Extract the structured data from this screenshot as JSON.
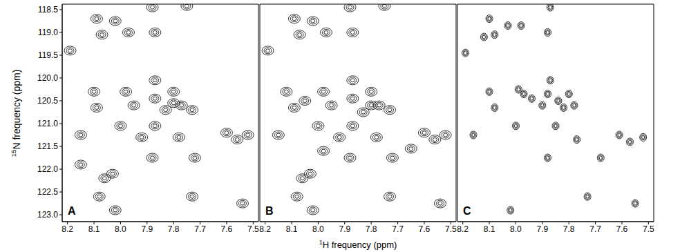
{
  "chart_data": [
    {
      "type": "scatter",
      "title": "A",
      "y_label": "15N frequency (ppm)",
      "color": "#000000",
      "grid": false,
      "x": [
        8.19,
        8.09,
        8.02,
        7.97,
        7.87,
        7.75,
        7.88,
        8.07,
        8.1,
        8.09,
        7.98,
        7.95,
        7.87,
        7.87,
        7.8,
        7.8,
        7.83,
        7.77,
        7.73,
        8.0,
        7.87,
        8.15,
        7.92,
        7.78,
        7.6,
        7.52,
        7.56,
        7.88,
        7.72,
        8.03,
        8.06,
        8.08,
        8.02,
        7.73,
        7.54,
        8.15
      ],
      "values": [
        119.4,
        118.7,
        118.75,
        119.0,
        119.0,
        118.42,
        118.45,
        119.05,
        120.3,
        120.65,
        120.3,
        120.6,
        120.05,
        120.45,
        120.3,
        120.55,
        120.7,
        120.6,
        120.7,
        121.05,
        121.05,
        121.25,
        121.3,
        121.3,
        121.2,
        121.25,
        121.35,
        121.75,
        121.75,
        122.1,
        122.2,
        122.6,
        122.9,
        122.6,
        122.75,
        121.9
      ],
      "xlim": [
        8.22,
        7.48
      ],
      "ylim": [
        123.15,
        118.38
      ],
      "xticks": [
        8.2,
        8.1,
        {
          "value": 8,
          "label": "8.0"
        },
        7.9,
        7.8,
        7.7,
        7.6,
        7.5
      ],
      "yticks": [
        118.5,
        {
          "value": 119,
          "label": "119.0"
        },
        119.5,
        {
          "value": 120,
          "label": "120.0"
        },
        120.5,
        {
          "value": 121,
          "label": "121.0"
        },
        121.5,
        {
          "value": 122,
          "label": "122.0"
        },
        122.5,
        {
          "value": 123,
          "label": "123.0"
        }
      ]
    },
    {
      "type": "scatter",
      "title": "B",
      "x_label": "1H frequency (ppm)",
      "color": "#000000",
      "grid": false,
      "tick_labels": "x",
      "x": [
        8.19,
        8.09,
        8.02,
        7.97,
        7.87,
        7.75,
        7.88,
        8.07,
        8.12,
        8.09,
        7.98,
        7.95,
        7.87,
        7.87,
        7.8,
        7.8,
        7.83,
        7.77,
        7.73,
        8.05,
        8.0,
        7.87,
        8.15,
        7.92,
        7.78,
        7.6,
        7.52,
        7.56,
        7.88,
        7.72,
        8.03,
        8.06,
        8.08,
        8.02,
        7.73,
        7.54,
        7.65,
        7.98
      ],
      "values": [
        119.4,
        118.7,
        118.75,
        119.0,
        119.0,
        118.42,
        118.45,
        119.05,
        120.3,
        120.65,
        120.3,
        120.6,
        120.05,
        120.45,
        120.3,
        120.6,
        120.75,
        120.6,
        120.7,
        120.5,
        121.05,
        121.05,
        121.25,
        121.3,
        121.3,
        121.2,
        121.25,
        121.35,
        121.75,
        121.75,
        122.1,
        122.2,
        122.6,
        122.9,
        122.6,
        122.75,
        121.55,
        121.6
      ],
      "xlim": [
        8.22,
        7.48
      ],
      "ylim": [
        123.15,
        118.38
      ],
      "xticks": [
        8.2,
        8.1,
        {
          "value": 8,
          "label": "8.0"
        },
        7.9,
        7.8,
        7.7,
        7.6,
        7.5
      ],
      "yticks": [
        118.5,
        {
          "value": 119,
          "label": "119.0"
        },
        119.5,
        {
          "value": 120,
          "label": "120.0"
        },
        120.5,
        {
          "value": 121,
          "label": "121.0"
        },
        121.5,
        {
          "value": 122,
          "label": "122.0"
        },
        122.5,
        {
          "value": 123,
          "label": "123.0"
        }
      ]
    },
    {
      "type": "scatter",
      "title": "C",
      "color": "#000000",
      "grid": false,
      "tick_labels": "x",
      "x": [
        8.19,
        8.1,
        8.03,
        7.98,
        7.88,
        8.12,
        8.08,
        8.1,
        8.08,
        7.99,
        7.97,
        7.94,
        7.9,
        7.87,
        7.88,
        7.84,
        7.8,
        7.82,
        7.78,
        8.0,
        7.85,
        8.16,
        7.77,
        7.61,
        7.57,
        7.52,
        7.88,
        7.68,
        7.73,
        7.55,
        8.02,
        7.87
      ],
      "values": [
        119.45,
        118.7,
        118.85,
        118.85,
        119.0,
        119.1,
        119.05,
        120.3,
        120.65,
        120.25,
        120.35,
        120.45,
        120.6,
        120.05,
        120.35,
        120.5,
        120.35,
        120.65,
        120.6,
        121.05,
        121.05,
        121.25,
        121.35,
        121.25,
        121.4,
        121.3,
        121.75,
        121.75,
        122.6,
        122.75,
        122.9,
        118.45
      ],
      "xlim": [
        8.22,
        7.48
      ],
      "ylim": [
        123.15,
        118.38
      ],
      "xticks": [
        8.2,
        8.1,
        {
          "value": 8,
          "label": "8.0"
        },
        7.9,
        7.8,
        7.7,
        7.6,
        7.5
      ],
      "yticks": [
        118.5,
        {
          "value": 119,
          "label": "119.0"
        },
        119.5,
        {
          "value": 120,
          "label": "120.0"
        },
        120.5,
        {
          "value": 121,
          "label": "121.0"
        },
        121.5,
        {
          "value": 122,
          "label": "122.0"
        },
        122.5,
        {
          "value": 123,
          "label": "123.0"
        }
      ]
    }
  ]
}
